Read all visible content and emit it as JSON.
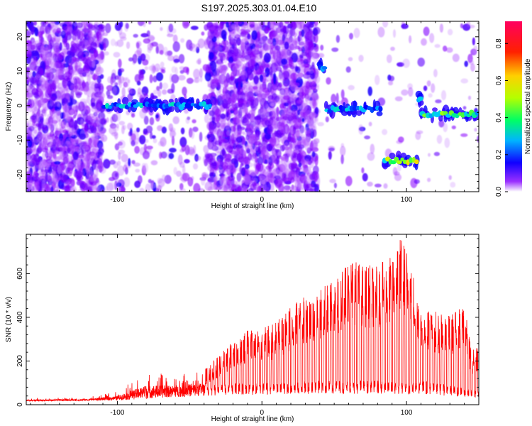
{
  "title": "S197.2025.303.01.04.E10",
  "chart_data": [
    {
      "type": "heatmap",
      "title": "S197.2025.303.01.04.E10",
      "xlabel": "Height of straight line (km)",
      "ylabel": "Frequency (Hz)",
      "xlim": [
        -163,
        150
      ],
      "ylim": [
        -25,
        24.5
      ],
      "xticks": [
        -100,
        0,
        100
      ],
      "xtick_labels": [
        "-100",
        "0",
        "100"
      ],
      "yticks": [
        -20,
        -10,
        0,
        10,
        20
      ],
      "ytick_labels": [
        "-20",
        "-10",
        "0",
        "10",
        "20"
      ],
      "colorbar": {
        "label": "Normalized spectral amplitude",
        "range": [
          0,
          0.92
        ],
        "ticks": [
          0,
          0.2,
          0.4,
          0.6,
          0.8
        ],
        "tick_labels": [
          "0.0",
          "0.2",
          "0.4",
          "0.6",
          "0.8"
        ],
        "colormap": [
          "#ffffff",
          "#8a00ff",
          "#0000ff",
          "#00c8ff",
          "#00ff60",
          "#c0ff00",
          "#ffd000",
          "#ff0000",
          "#ff0050"
        ]
      },
      "noise_regions": [
        {
          "x_range": [
            -163,
            -110
          ],
          "density": "high"
        },
        {
          "x_range": [
            -36,
            38
          ],
          "density": "high"
        },
        {
          "x_range": [
            -110,
            -36
          ],
          "density": "low"
        },
        {
          "x_range": [
            38,
            150
          ],
          "density": "very low"
        }
      ],
      "signal_tracks": [
        {
          "x_range": [
            -110,
            -35
          ],
          "frequency_hz": 0,
          "amplitude": 0.3
        },
        {
          "x_range": [
            40,
            44
          ],
          "frequency_hz": 11,
          "amplitude": 0.25
        },
        {
          "x_range": [
            44,
            83
          ],
          "frequency_hz": -1,
          "amplitude": 0.3
        },
        {
          "x_range": [
            84,
            108
          ],
          "frequency_hz": -16,
          "amplitude": 0.55
        },
        {
          "x_range": [
            108,
            110
          ],
          "frequency_hz": 2,
          "amplitude": 0.3
        },
        {
          "x_range": [
            110,
            150
          ],
          "frequency_hz": -2.5,
          "amplitude": 0.45
        }
      ]
    },
    {
      "type": "line",
      "xlabel": "Height of straight line (km)",
      "ylabel": "SNR (10 * v/v)",
      "xlim": [
        -163,
        150
      ],
      "ylim": [
        0,
        780
      ],
      "xticks": [
        -100,
        0,
        100
      ],
      "xtick_labels": [
        "-100",
        "0",
        "100"
      ],
      "yticks": [
        0,
        200,
        400,
        600
      ],
      "ytick_labels": [
        "0",
        "200",
        "400",
        "600"
      ],
      "series": [
        {
          "name": "SNR",
          "color": "#ff0000",
          "baseline_x": [
            -163,
            -100,
            -60,
            -20,
            0,
            40,
            80,
            100,
            110,
            150
          ],
          "baseline_y": [
            15,
            20,
            35,
            45,
            45,
            50,
            50,
            45,
            50,
            30
          ],
          "peak_envelope_x": [
            -163,
            -120,
            -100,
            -80,
            -60,
            -40,
            -20,
            -10,
            0,
            10,
            20,
            30,
            40,
            50,
            60,
            70,
            80,
            90,
            95,
            100,
            110,
            120,
            130,
            140,
            145,
            150
          ],
          "peak_envelope_y": [
            30,
            35,
            60,
            150,
            140,
            160,
            290,
            350,
            350,
            380,
            450,
            500,
            550,
            560,
            680,
            640,
            640,
            680,
            780,
            720,
            480,
            430,
            410,
            460,
            250,
            290
          ]
        }
      ]
    }
  ]
}
